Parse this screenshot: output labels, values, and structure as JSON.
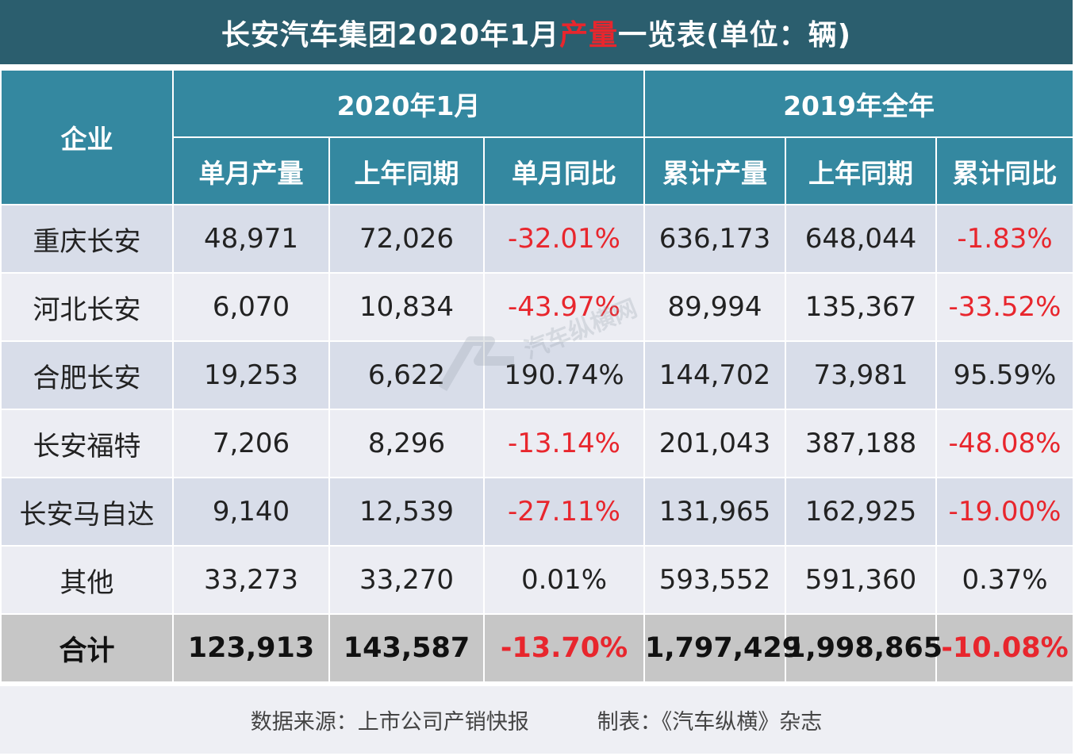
{
  "title": {
    "before": "长安汽车集团2020年1月",
    "highlight": "产量",
    "after": "一览表(单位：辆)"
  },
  "header": {
    "company": "企业",
    "group_month": "2020年1月",
    "group_year": "2019年全年",
    "columns": [
      "单月产量",
      "上年同期",
      "单月同比",
      "累计产量",
      "上年同期",
      "累计同比"
    ]
  },
  "rows": [
    {
      "name": "重庆长安",
      "values": [
        "48,971",
        "72,026",
        "-32.01%",
        "636,173",
        "648,044",
        "-1.83%"
      ]
    },
    {
      "name": "河北长安",
      "values": [
        "6,070",
        "10,834",
        "-43.97%",
        "89,994",
        "135,367",
        "-33.52%"
      ]
    },
    {
      "name": "合肥长安",
      "values": [
        "19,253",
        "6,622",
        "190.74%",
        "144,702",
        "73,981",
        "95.59%"
      ]
    },
    {
      "name": "长安福特",
      "values": [
        "7,206",
        "8,296",
        "-13.14%",
        "201,043",
        "387,188",
        "-48.08%"
      ]
    },
    {
      "name": "长安马自达",
      "values": [
        "9,140",
        "12,539",
        "-27.11%",
        "131,965",
        "162,925",
        "-19.00%"
      ]
    },
    {
      "name": "其他",
      "values": [
        "33,273",
        "33,270",
        "0.01%",
        "593,552",
        "591,360",
        "0.37%"
      ]
    }
  ],
  "total": {
    "name": "合计",
    "values": [
      "123,913",
      "143,587",
      "-13.70%",
      "1,797,429",
      "1,998,865",
      "-10.08%"
    ]
  },
  "footer": {
    "source": "数据来源：上市公司产销快报",
    "maker": "制表：《汽车纵横》杂志"
  },
  "watermark": {
    "text": "汽车纵横网"
  },
  "colors": {
    "title_bg": "#2b5e6e",
    "header_bg": "#3488a0",
    "row_odd": "#d8dde9",
    "row_even": "#ecedf3",
    "total_bg": "#c6c6c6",
    "negative": "#e8262d"
  }
}
